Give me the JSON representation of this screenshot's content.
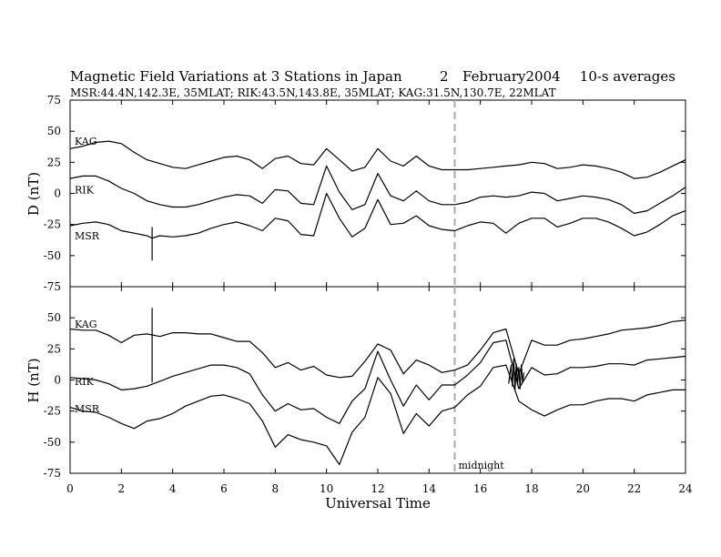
{
  "chart_data": {
    "type": "line",
    "title": "Magnetic Field Variations at 3 Stations in Japan",
    "date_day": "2",
    "date_month_year": "February2004",
    "averaging": "10-s averages",
    "subtitle": "MSR:44.4N,142.3E, 35MLAT;   RIK:43.5N,143.8E, 35MLAT;   KAG:31.5N,130.7E, 22MLAT",
    "xlabel": "Universal Time",
    "x_ticks": [
      "0",
      "2",
      "4",
      "6",
      "8",
      "10",
      "12",
      "14",
      "16",
      "18",
      "20",
      "22",
      "24"
    ],
    "xlim": [
      0,
      24
    ],
    "grid": false,
    "midnight_line": {
      "x": 15,
      "label": "midnight",
      "color": "#aaaaaa"
    },
    "panels": [
      {
        "ylabel": "D (nT)",
        "ylim": [
          -75,
          75
        ],
        "y_ticks": [
          "75",
          "50",
          "25",
          "0",
          "-25",
          "-50",
          "-75"
        ],
        "series": [
          {
            "name": "KAG",
            "x": [
              0,
              0.5,
              1,
              1.5,
              2,
              2.5,
              3,
              3.5,
              4,
              4.5,
              5,
              5.5,
              6,
              6.5,
              7,
              7.5,
              8,
              8.5,
              9,
              9.5,
              10,
              10.5,
              11,
              11.5,
              12,
              12.5,
              13,
              13.5,
              14,
              14.5,
              15,
              15.5,
              16,
              16.5,
              17,
              17.5,
              18,
              18.5,
              19,
              19.5,
              20,
              20.5,
              21,
              21.5,
              22,
              22.5,
              23,
              23.5,
              24
            ],
            "y": [
              36,
              38,
              41,
              42,
              40,
              33,
              27,
              24,
              21,
              20,
              23,
              26,
              29,
              30,
              27,
              20,
              28,
              30,
              24,
              23,
              36,
              27,
              18,
              21,
              36,
              26,
              22,
              30,
              22,
              19,
              19,
              19,
              20,
              21,
              22,
              23,
              25,
              24,
              20,
              21,
              23,
              22,
              20,
              17,
              12,
              13,
              17,
              22,
              27
            ]
          },
          {
            "name": "RIK",
            "x": [
              0,
              0.5,
              1,
              1.5,
              2,
              2.5,
              3,
              3.5,
              4,
              4.5,
              5,
              5.5,
              6,
              6.5,
              7,
              7.5,
              8,
              8.5,
              9,
              9.5,
              10,
              10.5,
              11,
              11.5,
              12,
              12.5,
              13,
              13.5,
              14,
              14.5,
              15,
              15.5,
              16,
              16.5,
              17,
              17.5,
              18,
              18.5,
              19,
              19.5,
              20,
              20.5,
              21,
              21.5,
              22,
              22.5,
              23,
              23.5,
              24
            ],
            "y": [
              12,
              14,
              14,
              10,
              4,
              0,
              -6,
              -9,
              -11,
              -11,
              -9,
              -6,
              -3,
              -1,
              -2,
              -8,
              3,
              2,
              -8,
              -9,
              22,
              1,
              -13,
              -9,
              16,
              -2,
              -6,
              2,
              -6,
              -9,
              -9,
              -7,
              -3,
              -2,
              -3,
              -2,
              1,
              0,
              -6,
              -4,
              -2,
              -3,
              -5,
              -9,
              -16,
              -14,
              -8,
              -2,
              5
            ]
          },
          {
            "name": "MSR",
            "x": [
              0,
              0.5,
              1,
              1.5,
              2,
              2.5,
              3,
              3.2,
              3.5,
              4,
              4.5,
              5,
              5.5,
              6,
              6.5,
              7,
              7.5,
              8,
              8.5,
              9,
              9.5,
              10,
              10.5,
              11,
              11.5,
              12,
              12.5,
              13,
              13.5,
              14,
              14.5,
              15,
              15.5,
              16,
              16.5,
              17,
              17.5,
              18,
              18.5,
              19,
              19.5,
              20,
              20.5,
              21,
              21.5,
              22,
              22.5,
              23,
              23.5,
              24
            ],
            "y": [
              -26,
              -24,
              -23,
              -25,
              -30,
              -32,
              -34,
              -36,
              -34,
              -35,
              -34,
              -32,
              -28,
              -25,
              -23,
              -26,
              -30,
              -20,
              -22,
              -33,
              -34,
              0,
              -20,
              -35,
              -28,
              -5,
              -25,
              -24,
              -18,
              -26,
              -29,
              -30,
              -26,
              -23,
              -24,
              -32,
              -24,
              -20,
              -20,
              -27,
              -24,
              -20,
              -20,
              -23,
              -28,
              -34,
              -31,
              -25,
              -18,
              -14
            ]
          },
          {
            "name": "",
            "x": [
              3.2,
              3.2
            ],
            "y": [
              -27,
              -54
            ]
          }
        ],
        "labels": [
          {
            "text": "KAG",
            "x": 0.2,
            "y": 42
          },
          {
            "text": "RIK",
            "x": 0.2,
            "y": 3
          },
          {
            "text": "MSR",
            "x": 0.2,
            "y": -34
          }
        ]
      },
      {
        "ylabel": "H (nT)",
        "ylim": [
          -75,
          75
        ],
        "y_ticks": [
          "75",
          "50",
          "25",
          "0",
          "-25",
          "-50",
          "-75"
        ],
        "series": [
          {
            "name": "KAG",
            "x": [
              0,
              0.5,
              1,
              1.5,
              2,
              2.5,
              3,
              3.5,
              4,
              4.5,
              5,
              5.5,
              6,
              6.5,
              7,
              7.5,
              8,
              8.5,
              9,
              9.5,
              10,
              10.5,
              11,
              11.5,
              12,
              12.5,
              13,
              13.5,
              14,
              14.5,
              15,
              15.5,
              16,
              16.5,
              17,
              17.5,
              18,
              18.5,
              19,
              19.5,
              20,
              20.5,
              21,
              21.5,
              22,
              22.5,
              23,
              23.5,
              24
            ],
            "y": [
              41,
              40,
              40,
              36,
              30,
              36,
              37,
              35,
              38,
              38,
              37,
              37,
              34,
              31,
              31,
              22,
              10,
              14,
              8,
              11,
              4,
              2,
              3,
              15,
              29,
              24,
              5,
              16,
              12,
              6,
              8,
              12,
              24,
              38,
              41,
              5,
              32,
              28,
              28,
              32,
              33,
              35,
              37,
              40,
              41,
              42,
              44,
              47,
              48
            ]
          },
          {
            "name": "RIK",
            "x": [
              0,
              0.5,
              1,
              1.5,
              2,
              2.5,
              3,
              3.5,
              4,
              4.5,
              5,
              5.5,
              6,
              6.5,
              7,
              7.5,
              8,
              8.5,
              9,
              9.5,
              10,
              10.5,
              11,
              11.5,
              12,
              12.5,
              13,
              13.5,
              14,
              14.5,
              15,
              15.5,
              16,
              16.5,
              17,
              17.5,
              18,
              18.5,
              19,
              19.5,
              20,
              20.5,
              21,
              21.5,
              22,
              22.5,
              23,
              23.5,
              24
            ],
            "y": [
              2,
              1,
              0,
              -3,
              -8,
              -7,
              -5,
              -1,
              3,
              6,
              9,
              12,
              12,
              10,
              5,
              -12,
              -25,
              -19,
              -24,
              -23,
              -30,
              -35,
              -17,
              -7,
              23,
              0,
              -21,
              -4,
              -16,
              -4,
              -4,
              4,
              14,
              30,
              32,
              -7,
              10,
              4,
              5,
              10,
              10,
              11,
              13,
              13,
              12,
              16,
              17,
              18,
              19
            ]
          },
          {
            "name": "MSR",
            "x": [
              0,
              0.5,
              1,
              1.5,
              2,
              2.5,
              3,
              3.5,
              4,
              4.5,
              5,
              5.5,
              6,
              6.5,
              7,
              7.5,
              8,
              8.5,
              9,
              9.5,
              10,
              10.5,
              11,
              11.5,
              12,
              12.5,
              13,
              13.5,
              14,
              14.5,
              15,
              15.5,
              16,
              16.5,
              17,
              17.5,
              18,
              18.5,
              19,
              19.5,
              20,
              20.5,
              21,
              21.5,
              22,
              22.5,
              23,
              23.5,
              24
            ],
            "y": [
              -22,
              -25,
              -26,
              -30,
              -35,
              -39,
              -33,
              -31,
              -27,
              -21,
              -17,
              -13,
              -12,
              -15,
              -19,
              -33,
              -54,
              -44,
              -48,
              -50,
              -53,
              -68,
              -42,
              -30,
              2,
              -11,
              -43,
              -27,
              -37,
              -25,
              -22,
              -12,
              -5,
              10,
              12,
              -17,
              -24,
              -29,
              -24,
              -20,
              -20,
              -17,
              -15,
              -15,
              -17,
              -12,
              -10,
              -8,
              -8
            ]
          },
          {
            "name": "",
            "x": [
              3.2,
              3.2
            ],
            "y": [
              -2,
              58
            ]
          },
          {
            "name": "",
            "x": [
              17.1,
              17.2,
              17.25,
              17.3,
              17.35,
              17.4,
              17.45,
              17.5,
              17.55,
              17.6,
              17.65,
              17.7
            ],
            "y": [
              -3,
              12,
              -5,
              17,
              -8,
              13,
              -4,
              10,
              -7,
              12,
              -2,
              6
            ]
          }
        ],
        "labels": [
          {
            "text": "KAG",
            "x": 0.2,
            "y": 45
          },
          {
            "text": "RIK",
            "x": 0.2,
            "y": -1
          },
          {
            "text": "MSR",
            "x": 0.2,
            "y": -23
          }
        ]
      }
    ]
  }
}
